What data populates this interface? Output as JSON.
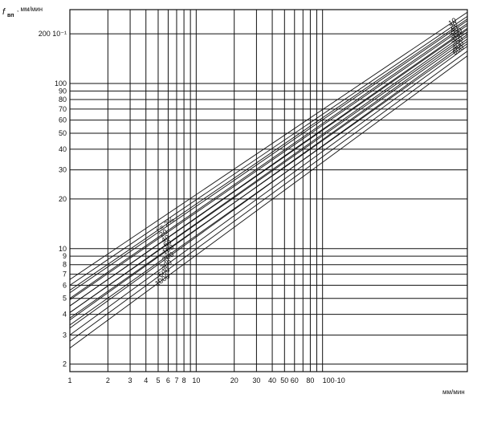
{
  "chart_data": {
    "type": "line",
    "xscale": "log",
    "yscale": "log",
    "xlim": [
      1,
      1400
    ],
    "ylim": [
      1.8,
      280
    ],
    "grid": true,
    "xlabel": "мм/мин",
    "ylabel": "f",
    "ylabel_sub": "вп",
    "ylabel_unit": ", мм/мин",
    "x_ticks": [
      {
        "v": 1,
        "t": "1"
      },
      {
        "v": 2,
        "t": "2"
      },
      {
        "v": 3,
        "t": "3"
      },
      {
        "v": 4,
        "t": "4"
      },
      {
        "v": 5,
        "t": "5"
      },
      {
        "v": 6,
        "t": "6"
      },
      {
        "v": 7,
        "t": "7"
      },
      {
        "v": 8,
        "t": "8"
      },
      {
        "v": 10,
        "t": "10"
      },
      {
        "v": 20,
        "t": "20"
      },
      {
        "v": 30,
        "t": "30"
      },
      {
        "v": 40,
        "t": "40"
      },
      {
        "v": 50,
        "t": "50"
      },
      {
        "v": 60,
        "t": "60"
      },
      {
        "v": 80,
        "t": "80"
      },
      {
        "v": 100,
        "t": "100·10"
      }
    ],
    "y_ticks": [
      {
        "v": 2,
        "t": "2"
      },
      {
        "v": 3,
        "t": "3"
      },
      {
        "v": 4,
        "t": "4"
      },
      {
        "v": 5,
        "t": "5"
      },
      {
        "v": 6,
        "t": "6"
      },
      {
        "v": 7,
        "t": "7"
      },
      {
        "v": 8,
        "t": "8"
      },
      {
        "v": 9,
        "t": "9"
      },
      {
        "v": 10,
        "t": "10"
      },
      {
        "v": 20,
        "t": "20"
      },
      {
        "v": 30,
        "t": "30"
      },
      {
        "v": 40,
        "t": "40"
      },
      {
        "v": 50,
        "t": "50"
      },
      {
        "v": 60,
        "t": "60"
      },
      {
        "v": 70,
        "t": "70"
      },
      {
        "v": 80,
        "t": "80"
      },
      {
        "v": 90,
        "t": "90"
      },
      {
        "v": 100,
        "t": "100"
      },
      {
        "v": 200,
        "t": "200 10⁻¹"
      }
    ],
    "x_gridlines": [
      1,
      2,
      3,
      4,
      5,
      6,
      7,
      8,
      9,
      10,
      20,
      30,
      40,
      50,
      60,
      70,
      80,
      90,
      100
    ],
    "y_gridlines": [
      2,
      3,
      4,
      5,
      6,
      7,
      8,
      9,
      10,
      20,
      30,
      40,
      50,
      60,
      70,
      80,
      90,
      100,
      200
    ],
    "series_lower": [
      {
        "name": "i = 2%",
        "x": [
          1,
          1400
        ],
        "y": [
          5.6,
          246
        ]
      },
      {
        "name": "20",
        "x": [
          1,
          1400
        ],
        "y": [
          5.0,
          231
        ]
      },
      {
        "name": "40",
        "x": [
          1,
          1400
        ],
        "y": [
          4.5,
          216
        ]
      },
      {
        "name": "60",
        "x": [
          1,
          1400
        ],
        "y": [
          4.1,
          205
        ]
      },
      {
        "name": "100",
        "x": [
          1,
          1400
        ],
        "y": [
          3.7,
          193
        ]
      },
      {
        "name": "200",
        "x": [
          1,
          1400
        ],
        "y": [
          3.3,
          180
        ]
      },
      {
        "name": "300",
        "x": [
          1,
          1400
        ],
        "y": [
          3.0,
          168
        ]
      },
      {
        "name": "500",
        "x": [
          1,
          1400
        ],
        "y": [
          2.75,
          157
        ]
      },
      {
        "name": "1000",
        "x": [
          1,
          1400
        ],
        "y": [
          2.5,
          147
        ]
      }
    ],
    "series_upper": [
      {
        "name": "10",
        "x": [
          1,
          1400
        ],
        "y": [
          6.5,
          270
        ]
      },
      {
        "name": "20",
        "x": [
          1,
          1400
        ],
        "y": [
          6.0,
          255
        ]
      },
      {
        "name": "40",
        "x": [
          1,
          1400
        ],
        "y": [
          5.4,
          240
        ]
      },
      {
        "name": "100",
        "x": [
          1,
          1400
        ],
        "y": [
          4.9,
          225
        ]
      },
      {
        "name": "150",
        "x": [
          1,
          1400
        ],
        "y": [
          4.5,
          212
        ]
      },
      {
        "name": "250",
        "x": [
          1,
          1400
        ],
        "y": [
          4.1,
          198
        ]
      },
      {
        "name": "400",
        "x": [
          1,
          1400
        ],
        "y": [
          3.8,
          186
        ]
      },
      {
        "name": "600",
        "x": [
          1,
          1400
        ],
        "y": [
          3.45,
          174
        ]
      }
    ],
    "lower_label_positions": [
      {
        "x": 5.0,
        "t": "i = 2%"
      },
      {
        "x": 5.3,
        "t": "20"
      },
      {
        "x": 5.5,
        "t": "40"
      },
      {
        "x": 5.7,
        "t": "60"
      },
      {
        "x": 5.6,
        "t": "100"
      },
      {
        "x": 5.6,
        "t": "200"
      },
      {
        "x": 5.4,
        "t": "300"
      },
      {
        "x": 5.2,
        "t": "500"
      },
      {
        "x": 4.9,
        "t": "1000"
      }
    ],
    "upper_label_positions": [
      {
        "x": 1030,
        "t": "10"
      },
      {
        "x": 1050,
        "t": "20"
      },
      {
        "x": 1060,
        "t": "40"
      },
      {
        "x": 1070,
        "t": "100"
      },
      {
        "x": 1080,
        "t": "150"
      },
      {
        "x": 1090,
        "t": "250"
      },
      {
        "x": 1100,
        "t": "400"
      },
      {
        "x": 1110,
        "t": "600"
      }
    ]
  }
}
